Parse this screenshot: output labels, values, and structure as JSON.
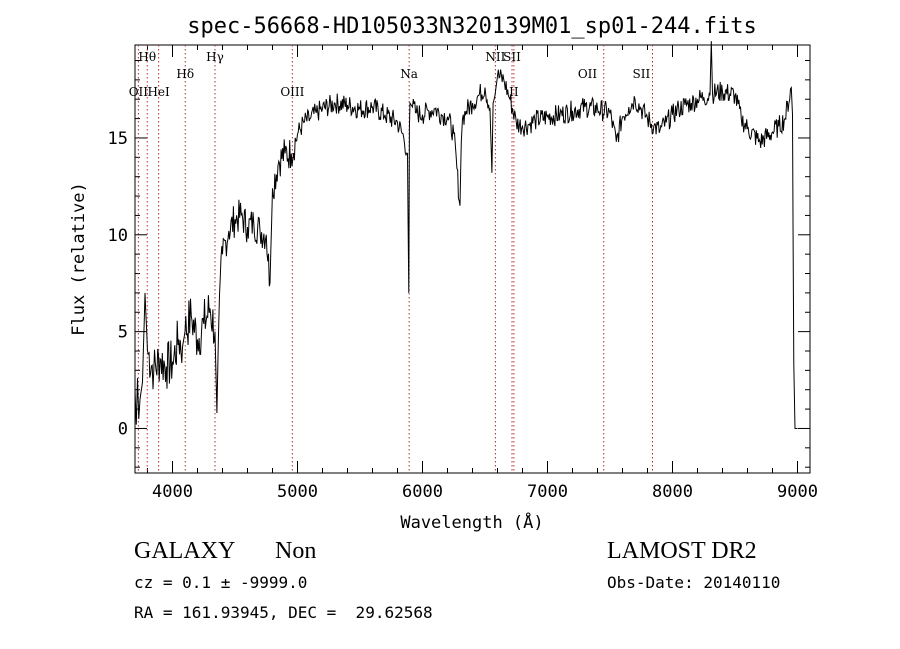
{
  "chart_data": {
    "type": "line",
    "title": "spec-56668-HD105033N320139M01_sp01-244.fits",
    "xlabel": "Wavelength (Å)",
    "ylabel": "Flux (relative)",
    "xlim": [
      3700,
      9100
    ],
    "ylim": [
      -2.3,
      19.8
    ],
    "x_ticks": [
      4000,
      5000,
      6000,
      7000,
      8000,
      9000
    ],
    "y_ticks": [
      0,
      5,
      10,
      15
    ],
    "grid": false,
    "series": [
      {
        "x": [
          3700,
          3710,
          3720,
          3730,
          3740,
          3760,
          3780,
          3800,
          3850,
          3900,
          3950,
          4000,
          4050,
          4080,
          4100,
          4150,
          4200,
          4250,
          4300,
          4340,
          4355,
          4370,
          4400,
          4450,
          4500,
          4550,
          4600,
          4650,
          4700,
          4750,
          4780,
          4800,
          4850,
          4900,
          4950,
          5000,
          5050,
          5100,
          5150,
          5200,
          5300,
          5400,
          5500,
          5600,
          5700,
          5800,
          5850,
          5880,
          5890,
          5895,
          5900,
          5920,
          5950,
          6000,
          6050,
          6100,
          6150,
          6200,
          6250,
          6300,
          6310,
          6320,
          6350,
          6400,
          6450,
          6500,
          6540,
          6555,
          6565,
          6580,
          6600,
          6650,
          6700,
          6750,
          6800,
          6850,
          6900,
          7000,
          7100,
          7200,
          7300,
          7400,
          7500,
          7550,
          7600,
          7650,
          7700,
          7750,
          7800,
          7850,
          7900,
          7950,
          8000,
          8050,
          8100,
          8150,
          8200,
          8250,
          8300,
          8310,
          8320,
          8400,
          8500,
          8550,
          8600,
          8700,
          8800,
          8850,
          8900,
          8950,
          8960,
          8970,
          8980,
          9000
        ],
        "y": [
          2.0,
          0.2,
          2.6,
          0.5,
          1.5,
          2.4,
          7.0,
          4.0,
          3.0,
          3.6,
          3.2,
          3.4,
          4.6,
          4.2,
          5.0,
          5.8,
          4.6,
          5.4,
          6.2,
          5.0,
          0.8,
          5.5,
          9.0,
          10.2,
          10.8,
          11.0,
          10.4,
          10.6,
          10.2,
          10.0,
          7.5,
          12.4,
          13.8,
          14.2,
          14.2,
          15.2,
          15.8,
          16.0,
          16.3,
          16.5,
          16.8,
          16.7,
          16.5,
          16.6,
          16.2,
          15.8,
          15.0,
          14.2,
          7.0,
          15.5,
          16.8,
          16.6,
          16.3,
          16.2,
          16.4,
          16.5,
          16.2,
          16.1,
          15.2,
          11.5,
          14.8,
          16.0,
          16.4,
          16.8,
          17.2,
          17.6,
          16.5,
          13.2,
          16.8,
          17.2,
          18.2,
          18.0,
          17.0,
          15.8,
          15.6,
          15.7,
          15.9,
          16.1,
          16.2,
          16.4,
          16.6,
          16.5,
          16.3,
          14.8,
          16.1,
          16.6,
          17.0,
          16.5,
          16.0,
          15.6,
          15.4,
          15.8,
          16.2,
          16.5,
          16.7,
          16.8,
          17.0,
          17.1,
          17.2,
          20.0,
          17.3,
          17.4,
          17.2,
          16.0,
          15.5,
          14.8,
          15.3,
          15.6,
          16.0,
          17.6,
          16.2,
          3.3,
          0.0,
          0.0
        ]
      }
    ],
    "annotations": [
      {
        "label": "Hθ",
        "x": 3798,
        "row": 1
      },
      {
        "label": "OII",
        "x": 3727,
        "row": 3
      },
      {
        "label": "HeI",
        "x": 3889,
        "row": 3
      },
      {
        "label": "Hδ",
        "x": 4102,
        "row": 2
      },
      {
        "label": "Hγ",
        "x": 4340,
        "row": 1
      },
      {
        "label": "OIII",
        "x": 4959,
        "row": 3
      },
      {
        "label": "Na",
        "x": 5893,
        "row": 2
      },
      {
        "label": "NII",
        "x": 6583,
        "row": 1
      },
      {
        "label": "SII",
        "x": 6716,
        "row": 1
      },
      {
        "label": "II",
        "x": 6731,
        "row": 3
      },
      {
        "label": "OII",
        "x": 7320,
        "row": 2
      },
      {
        "label": "SII",
        "x": 7751,
        "row": 2
      }
    ],
    "line_markers": [
      3727,
      3798,
      3889,
      4102,
      4340,
      4959,
      5893,
      6583,
      6716,
      6731,
      7450,
      7840
    ]
  },
  "info": {
    "classification": "GALAXY",
    "subclass": "Non",
    "survey": "LAMOST DR2",
    "cz": "cz = 0.1 ± -9999.0",
    "obs_date": "Obs-Date: 20140110",
    "radec": "RA = 161.93945, DEC =  29.62568"
  }
}
